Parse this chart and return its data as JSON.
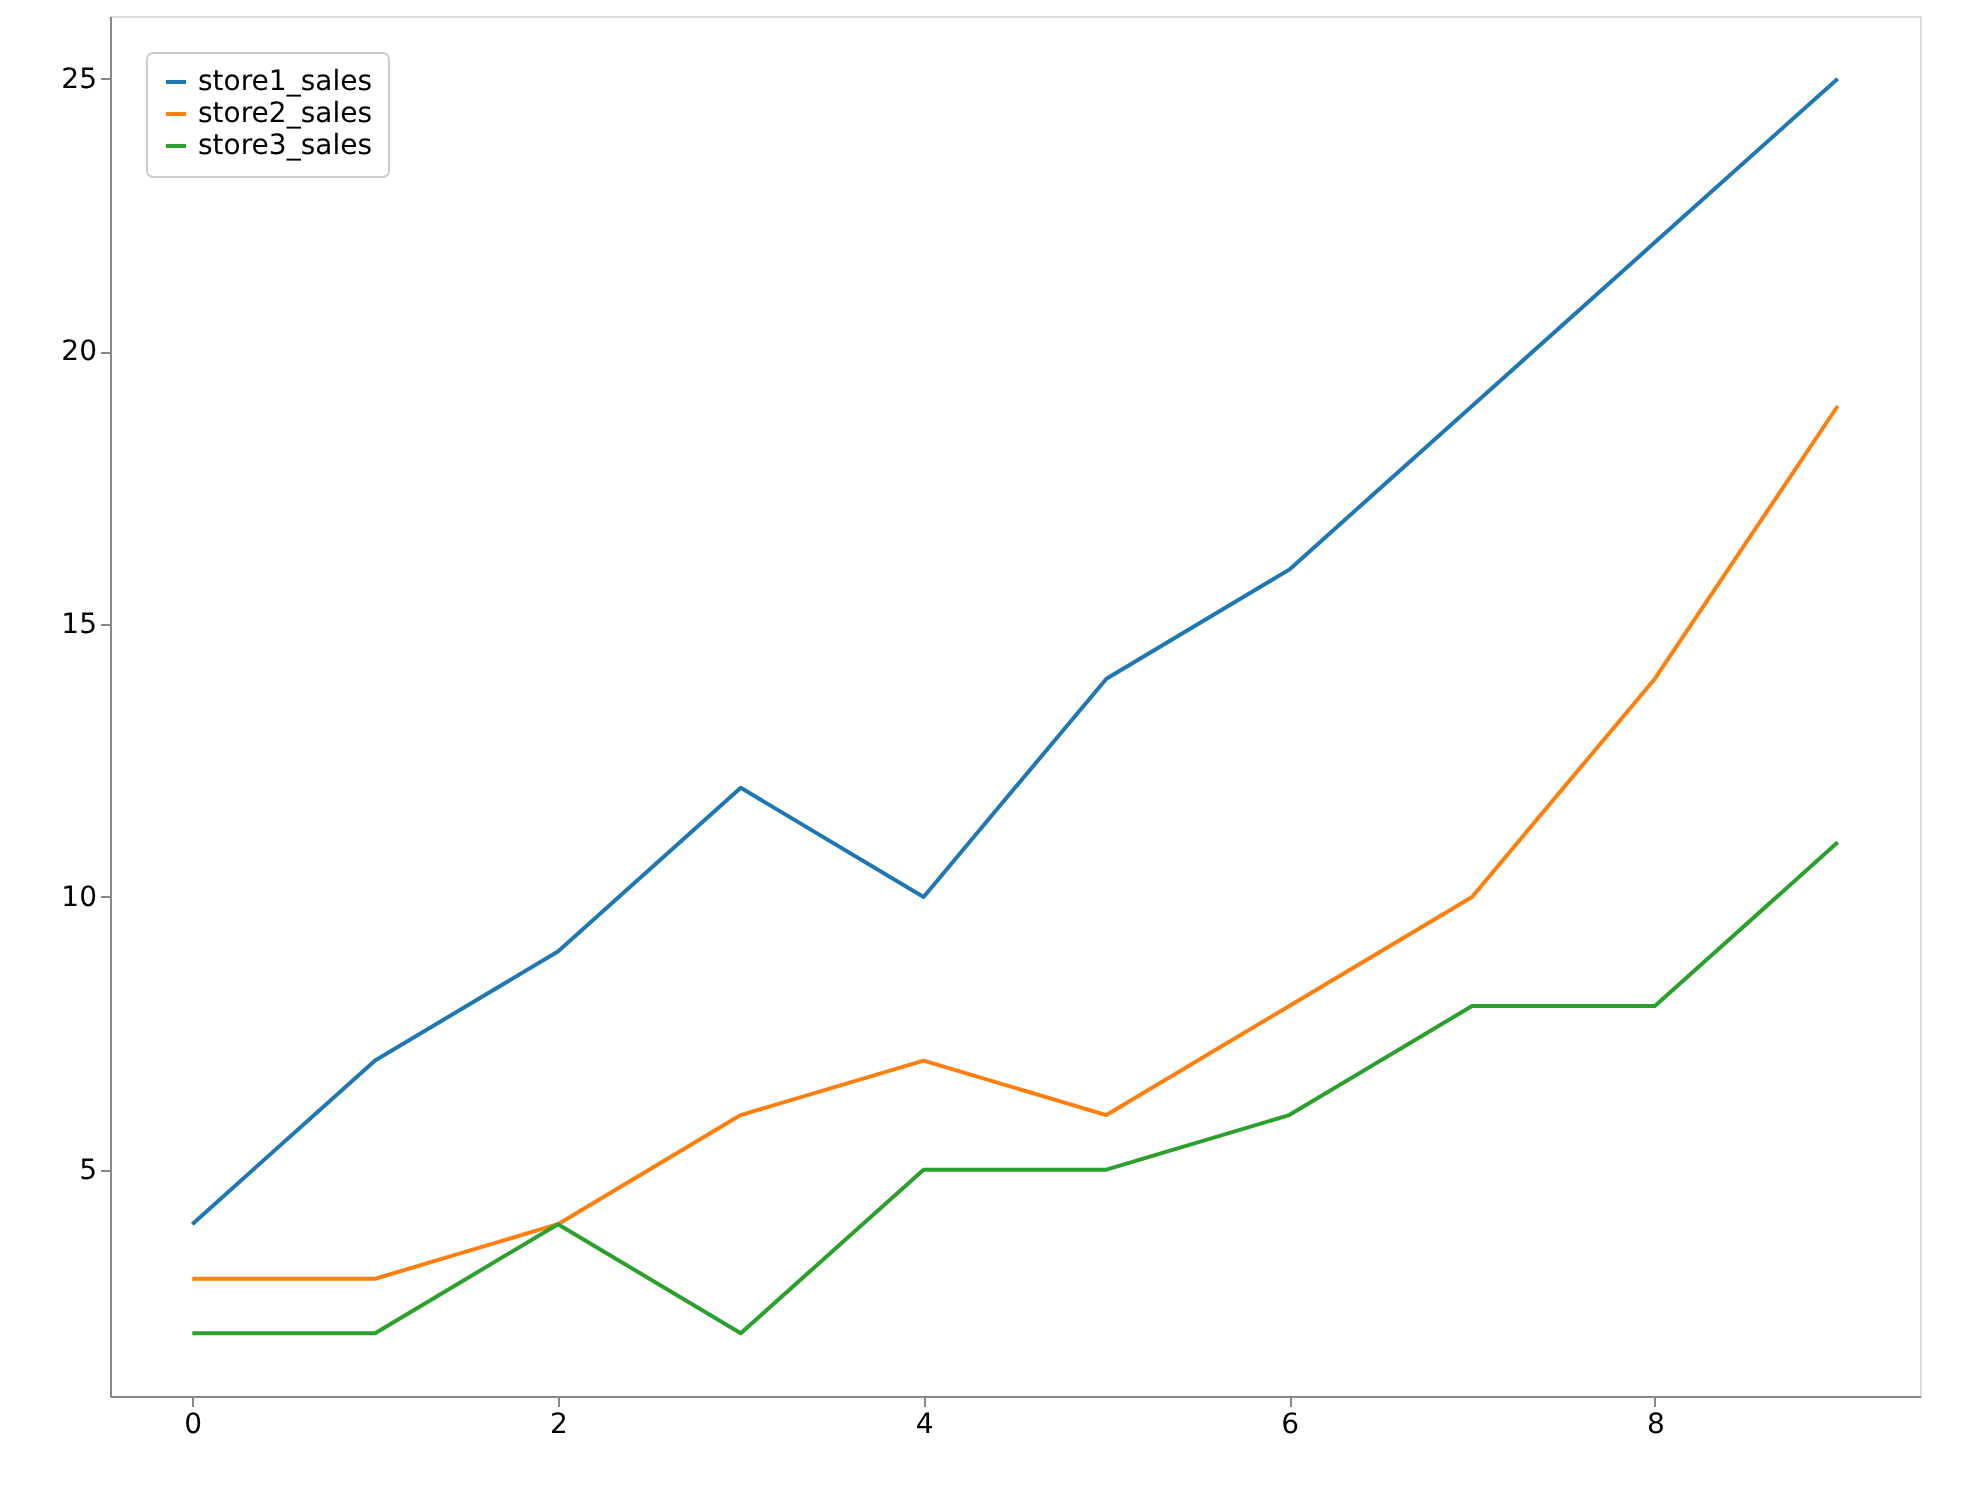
{
  "chart_data": {
    "type": "line",
    "x": [
      0,
      1,
      2,
      3,
      4,
      5,
      6,
      7,
      8,
      9
    ],
    "series": [
      {
        "name": "store1_sales",
        "color": "#1f77b4",
        "values": [
          4,
          7,
          9,
          12,
          10,
          14,
          16,
          19,
          22,
          25
        ]
      },
      {
        "name": "store2_sales",
        "color": "#ff7f0e",
        "values": [
          3,
          3,
          4,
          6,
          7,
          6,
          8,
          10,
          14,
          19
        ]
      },
      {
        "name": "store3_sales",
        "color": "#2ca02c",
        "values": [
          2,
          2,
          4,
          2,
          5,
          5,
          6,
          8,
          8,
          11
        ]
      }
    ],
    "xlim": [
      -0.45,
      9.45
    ],
    "xticks": [
      0,
      2,
      4,
      6,
      8
    ],
    "ylim": [
      0.85,
      26.15
    ],
    "yticks": [
      5,
      10,
      15,
      20,
      25
    ],
    "grid": false,
    "legend": "top left",
    "marker": "none",
    "line_style": "solid"
  }
}
